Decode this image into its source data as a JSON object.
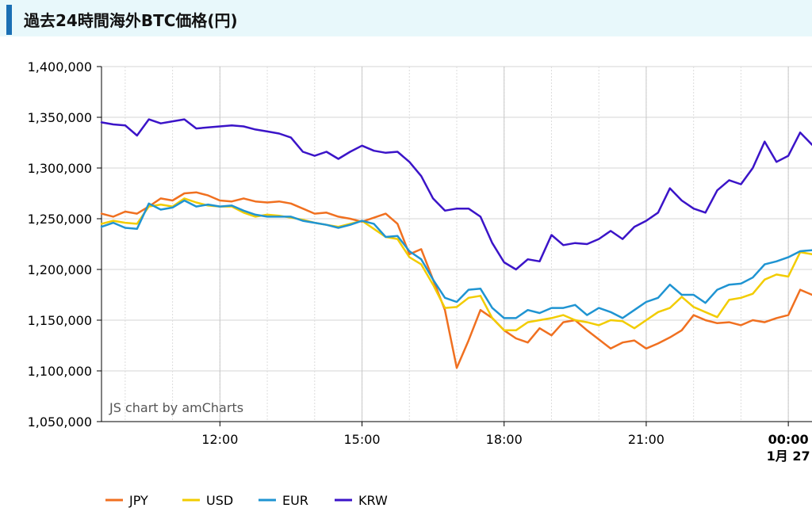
{
  "header": {
    "title": "過去24時間海外BTC価格(円)"
  },
  "credit": "JS chart by amCharts",
  "chart_data": {
    "type": "line",
    "title": "過去24時間海外BTC価格(円)",
    "xlabel": "",
    "ylabel": "",
    "ylim": [
      1050000,
      1400000
    ],
    "yticks": [
      1050000,
      1100000,
      1150000,
      1200000,
      1250000,
      1300000,
      1350000,
      1400000
    ],
    "ytick_labels": [
      "1,050,000",
      "1,100,000",
      "1,150,000",
      "1,200,000",
      "1,250,000",
      "1,300,000",
      "1,350,000",
      "1,400,000"
    ],
    "xlim": [
      9.5,
      24.5
    ],
    "xticks": [
      {
        "x": 12,
        "label": "12:00",
        "sub": "",
        "bold": false
      },
      {
        "x": 15,
        "label": "15:00",
        "sub": "",
        "bold": false
      },
      {
        "x": 18,
        "label": "18:00",
        "sub": "",
        "bold": false
      },
      {
        "x": 21,
        "label": "21:00",
        "sub": "",
        "bold": false
      },
      {
        "x": 24,
        "label": "00:00",
        "sub": "1月 27",
        "bold": true
      }
    ],
    "x": [
      9.5,
      9.75,
      10,
      10.25,
      10.5,
      10.75,
      11,
      11.25,
      11.5,
      11.75,
      12,
      12.25,
      12.5,
      12.75,
      13,
      13.25,
      13.5,
      13.75,
      14,
      14.25,
      14.5,
      14.75,
      15,
      15.25,
      15.5,
      15.75,
      16,
      16.25,
      16.5,
      16.75,
      17,
      17.25,
      17.5,
      17.75,
      18,
      18.25,
      18.5,
      18.75,
      19,
      19.25,
      19.5,
      19.75,
      20,
      20.25,
      20.5,
      20.75,
      21,
      21.25,
      21.5,
      21.75,
      22,
      22.25,
      22.5,
      22.75,
      23,
      23.25,
      23.5,
      23.75,
      24,
      24.25,
      24.5
    ],
    "grid": true,
    "legend_position": "bottom-left",
    "series": [
      {
        "name": "JPY",
        "color": "#f07020",
        "values": [
          1255000,
          1252000,
          1257000,
          1255000,
          1262000,
          1270000,
          1268000,
          1275000,
          1276000,
          1273000,
          1268000,
          1267000,
          1270000,
          1267000,
          1266000,
          1267000,
          1265000,
          1260000,
          1255000,
          1256000,
          1252000,
          1250000,
          1247000,
          1251000,
          1255000,
          1245000,
          1215000,
          1220000,
          1190000,
          1160000,
          1103000,
          1130000,
          1160000,
          1152000,
          1140000,
          1132000,
          1128000,
          1142000,
          1135000,
          1148000,
          1150000,
          1140000,
          1131000,
          1122000,
          1128000,
          1130000,
          1122000,
          1127000,
          1133000,
          1140000,
          1155000,
          1150000,
          1147000,
          1148000,
          1145000,
          1150000,
          1148000,
          1152000,
          1155000,
          1180000,
          1175000
        ]
      },
      {
        "name": "USD",
        "color": "#f2cc00",
        "values": [
          1245000,
          1248000,
          1246000,
          1245000,
          1262000,
          1264000,
          1262000,
          1270000,
          1266000,
          1263000,
          1262000,
          1262000,
          1256000,
          1252000,
          1254000,
          1253000,
          1251000,
          1249000,
          1246000,
          1244000,
          1242000,
          1245000,
          1248000,
          1240000,
          1232000,
          1230000,
          1212000,
          1205000,
          1185000,
          1162000,
          1163000,
          1172000,
          1174000,
          1152000,
          1140000,
          1140000,
          1148000,
          1150000,
          1152000,
          1155000,
          1150000,
          1148000,
          1145000,
          1150000,
          1149000,
          1142000,
          1150000,
          1158000,
          1162000,
          1173000,
          1163000,
          1158000,
          1153000,
          1170000,
          1172000,
          1176000,
          1190000,
          1195000,
          1193000,
          1217000,
          1215000
        ]
      },
      {
        "name": "EUR",
        "color": "#1f94d2",
        "values": [
          1242000,
          1246000,
          1241000,
          1240000,
          1265000,
          1259000,
          1261000,
          1268000,
          1262000,
          1264000,
          1262000,
          1263000,
          1258000,
          1254000,
          1252000,
          1252000,
          1252000,
          1248000,
          1246000,
          1244000,
          1241000,
          1244000,
          1248000,
          1245000,
          1232000,
          1233000,
          1218000,
          1210000,
          1190000,
          1172000,
          1168000,
          1180000,
          1181000,
          1162000,
          1152000,
          1152000,
          1160000,
          1157000,
          1162000,
          1162000,
          1165000,
          1155000,
          1162000,
          1158000,
          1152000,
          1160000,
          1168000,
          1172000,
          1185000,
          1175000,
          1175000,
          1167000,
          1180000,
          1185000,
          1186000,
          1192000,
          1205000,
          1208000,
          1212000,
          1218000,
          1219000
        ]
      },
      {
        "name": "KRW",
        "color": "#3b14c8",
        "values": [
          1345000,
          1343000,
          1342000,
          1332000,
          1348000,
          1344000,
          1346000,
          1348000,
          1339000,
          1340000,
          1341000,
          1342000,
          1341000,
          1338000,
          1336000,
          1334000,
          1330000,
          1316000,
          1312000,
          1316000,
          1309000,
          1316000,
          1322000,
          1317000,
          1315000,
          1316000,
          1306000,
          1292000,
          1270000,
          1258000,
          1260000,
          1260000,
          1252000,
          1226000,
          1207000,
          1200000,
          1210000,
          1208000,
          1234000,
          1224000,
          1226000,
          1225000,
          1230000,
          1238000,
          1230000,
          1242000,
          1248000,
          1256000,
          1280000,
          1268000,
          1260000,
          1256000,
          1278000,
          1288000,
          1284000,
          1300000,
          1326000,
          1306000,
          1312000,
          1335000,
          1323000
        ]
      }
    ]
  }
}
